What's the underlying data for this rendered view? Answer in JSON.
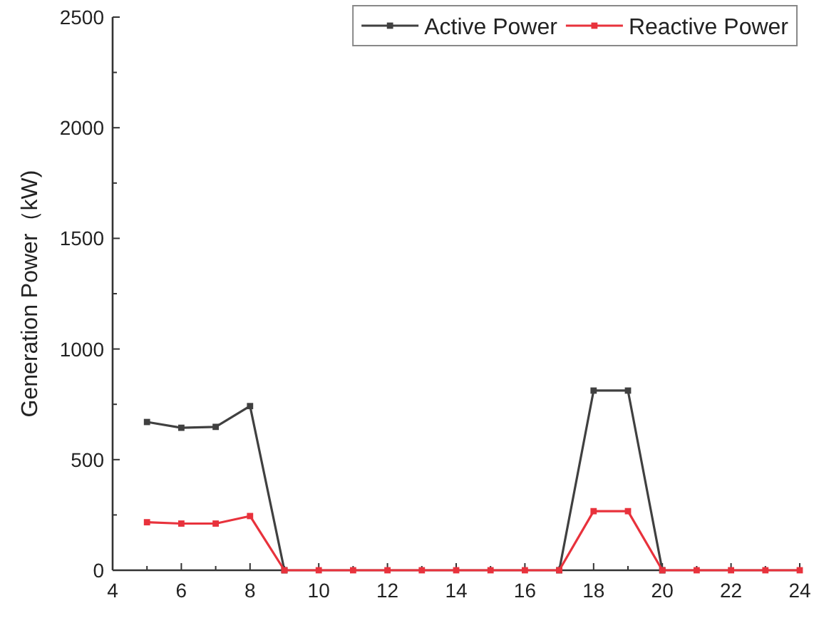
{
  "chart_data": {
    "type": "line",
    "ylabel": "Generation Power（kW)",
    "x": [
      5,
      6,
      7,
      8,
      9,
      10,
      11,
      12,
      13,
      14,
      15,
      16,
      17,
      18,
      19,
      20,
      21,
      22,
      23,
      24
    ],
    "series": [
      {
        "name": "Active Power",
        "color": "#404040",
        "values": [
          670,
          644,
          648,
          742,
          0,
          null,
          null,
          null,
          null,
          null,
          null,
          null,
          0,
          812,
          812,
          0,
          null,
          null,
          null,
          null
        ]
      },
      {
        "name": "Reactive Power",
        "color": "#e8323c",
        "values": [
          217,
          211,
          211,
          245,
          0,
          0,
          0,
          0,
          0,
          0,
          0,
          0,
          0,
          267,
          267,
          0,
          0,
          0,
          0,
          0
        ]
      }
    ],
    "xlim": [
      4,
      24
    ],
    "ylim": [
      0,
      2500
    ],
    "xticks": [
      4,
      {
        "value": 5,
        "label": null
      },
      6,
      {
        "value": 7,
        "label": null
      },
      8,
      {
        "value": 9,
        "label": null
      },
      10,
      {
        "value": 11,
        "label": null
      },
      12,
      {
        "value": 13,
        "label": null
      },
      14,
      {
        "value": 15,
        "label": null
      },
      16,
      {
        "value": 17,
        "label": null
      },
      18,
      {
        "value": 19,
        "label": null
      },
      20,
      {
        "value": 21,
        "label": null
      },
      22,
      {
        "value": 23,
        "label": null
      },
      24
    ],
    "yticks": [
      0,
      {
        "value": 250,
        "label": null
      },
      500,
      {
        "value": 750,
        "label": null
      },
      1000,
      {
        "value": 1250,
        "label": null
      },
      1500,
      {
        "value": 1750,
        "label": null
      },
      2000,
      {
        "value": 2250,
        "label": null
      },
      2500
    ],
    "legend": "top right",
    "marker": "square",
    "line_style": "solid",
    "grid": false
  }
}
